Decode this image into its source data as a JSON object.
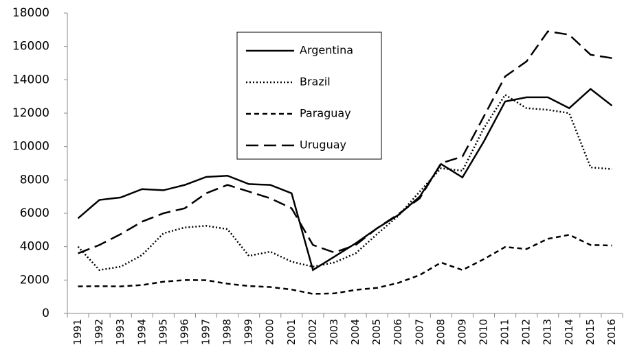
{
  "chart_data": {
    "type": "line",
    "categories": [
      "1991",
      "1992",
      "1993",
      "1994",
      "1995",
      "1996",
      "1997",
      "1998",
      "1999",
      "2000",
      "2001",
      "2002",
      "2003",
      "2004",
      "2005",
      "2006",
      "2007",
      "2008",
      "2009",
      "2010",
      "2011",
      "2012",
      "2013",
      "2014",
      "2015",
      "2016"
    ],
    "series": [
      {
        "name": "Argentina",
        "color": "#000000",
        "dash": "solid",
        "values": [
          5700,
          6800,
          6950,
          7450,
          7380,
          7700,
          8180,
          8250,
          7750,
          7700,
          7200,
          2600,
          3400,
          4200,
          5100,
          5900,
          7000,
          8950,
          8150,
          10300,
          12700,
          12950,
          12950,
          12300,
          13450,
          12450
        ]
      },
      {
        "name": "Brazil",
        "color": "#000000",
        "dash": "dotted",
        "values": [
          4000,
          2600,
          2800,
          3500,
          4800,
          5150,
          5250,
          5050,
          3450,
          3700,
          3100,
          2800,
          3050,
          3600,
          4750,
          5850,
          7300,
          8700,
          8550,
          11100,
          13100,
          12300,
          12200,
          12000,
          8750,
          8650
        ]
      },
      {
        "name": "Paraguay",
        "color": "#000000",
        "dash": "dashed",
        "values": [
          1620,
          1630,
          1620,
          1700,
          1900,
          2000,
          1990,
          1780,
          1640,
          1580,
          1430,
          1170,
          1200,
          1410,
          1530,
          1830,
          2300,
          3050,
          2600,
          3250,
          3980,
          3860,
          4470,
          4710,
          4100,
          4070
        ]
      },
      {
        "name": "Uruguay",
        "color": "#000000",
        "dash": "longdash",
        "values": [
          3600,
          4100,
          4750,
          5500,
          6000,
          6300,
          7200,
          7700,
          7300,
          6900,
          6300,
          4100,
          3650,
          4100,
          5100,
          5950,
          6900,
          9000,
          9400,
          11800,
          14200,
          15100,
          16900,
          16700,
          15500,
          15300
        ]
      }
    ],
    "ylim": [
      0,
      18000
    ],
    "yticks": [
      0,
      2000,
      4000,
      6000,
      8000,
      10000,
      12000,
      14000,
      16000,
      18000
    ],
    "grid": false
  }
}
